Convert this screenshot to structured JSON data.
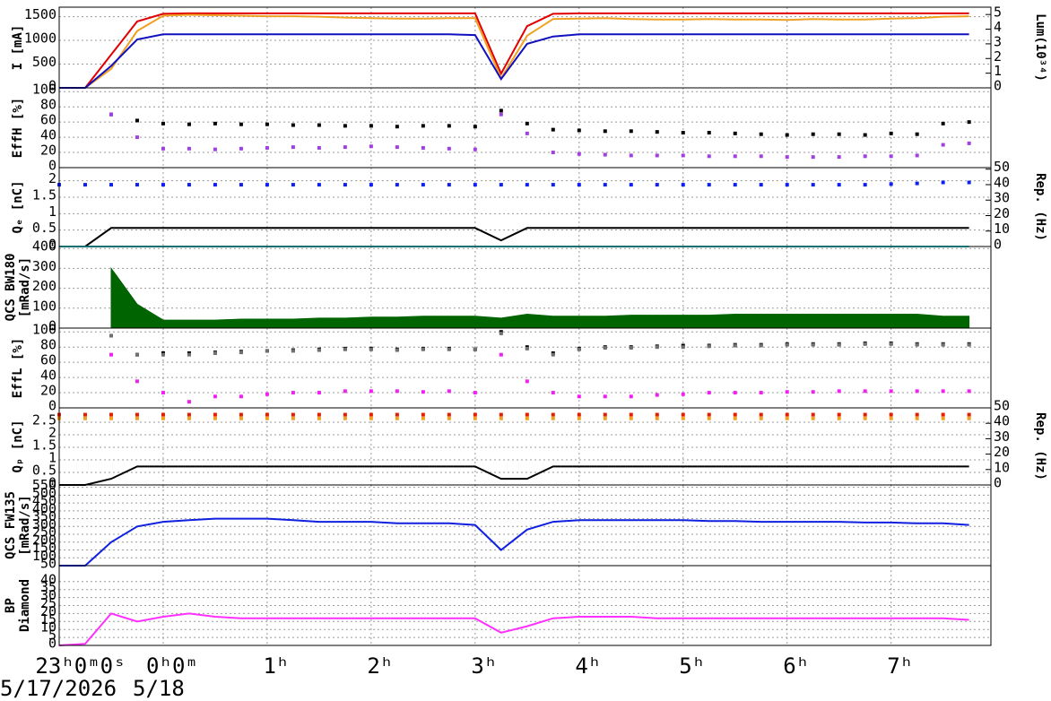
{
  "chart_data": [
    {
      "type": "line",
      "ylabel": "I [mA]",
      "y2label": "Lum(10³⁴)",
      "x": [
        -1,
        -0.75,
        -0.5,
        -0.25,
        0,
        0.25,
        0.5,
        0.75,
        1,
        1.25,
        1.5,
        1.75,
        2,
        2.25,
        2.5,
        2.75,
        3,
        3.25,
        3.5,
        3.75,
        4,
        4.25,
        4.5,
        4.75,
        5,
        5.25,
        5.5,
        5.75,
        6,
        6.25,
        6.5,
        6.75,
        7,
        7.25,
        7.5,
        7.75
      ],
      "xlim": [
        -1,
        7.96
      ],
      "ylim": [
        0,
        1700
      ],
      "yticks": [
        0,
        500,
        1000,
        1500
      ],
      "y2lim": [
        0,
        5.5
      ],
      "y2ticks": [
        0,
        1,
        2,
        3,
        4,
        5
      ],
      "series": [
        {
          "color": "#e00000",
          "values": [
            0,
            0,
            700,
            1400,
            1560,
            1570,
            1570,
            1570,
            1570,
            1570,
            1570,
            1570,
            1570,
            1570,
            1570,
            1570,
            1570,
            300,
            1300,
            1560,
            1570,
            1570,
            1570,
            1570,
            1570,
            1570,
            1570,
            1570,
            1570,
            1570,
            1570,
            1570,
            1570,
            1570,
            1570,
            1570
          ]
        },
        {
          "color": "#f0a020",
          "values": [
            0,
            0,
            400,
            1200,
            1520,
            1540,
            1530,
            1520,
            1510,
            1510,
            1500,
            1480,
            1470,
            1460,
            1460,
            1470,
            1470,
            200,
            1100,
            1450,
            1460,
            1470,
            1450,
            1440,
            1440,
            1450,
            1440,
            1440,
            1430,
            1450,
            1440,
            1440,
            1460,
            1470,
            1500,
            1510
          ]
        },
        {
          "color": "#1010c0",
          "axis": "y2",
          "values": [
            0,
            0,
            1.5,
            3.3,
            3.65,
            3.65,
            3.65,
            3.65,
            3.65,
            3.65,
            3.65,
            3.65,
            3.65,
            3.65,
            3.65,
            3.65,
            3.6,
            0.6,
            3,
            3.5,
            3.65,
            3.65,
            3.65,
            3.65,
            3.65,
            3.65,
            3.65,
            3.65,
            3.65,
            3.65,
            3.65,
            3.65,
            3.65,
            3.65,
            3.65,
            3.65
          ]
        }
      ]
    },
    {
      "type": "scatter",
      "ylabel": "EffH [%]",
      "x": [
        -1,
        -0.75,
        -0.5,
        -0.25,
        0,
        0.25,
        0.5,
        0.75,
        1,
        1.25,
        1.5,
        1.75,
        2,
        2.25,
        2.5,
        2.75,
        3,
        3.25,
        3.5,
        3.75,
        4,
        4.25,
        4.5,
        4.75,
        5,
        5.25,
        5.5,
        5.75,
        6,
        6.25,
        6.5,
        6.75,
        7,
        7.25,
        7.5,
        7.75
      ],
      "xlim": [
        -1,
        7.96
      ],
      "ylim": [
        0,
        105
      ],
      "yticks": [
        0,
        20,
        40,
        60,
        80,
        100
      ],
      "series": [
        {
          "color": "#000000",
          "values": [
            null,
            null,
            70,
            62,
            58,
            57,
            58,
            57,
            57,
            56,
            56,
            55,
            55,
            54,
            55,
            55,
            54,
            75,
            58,
            50,
            49,
            48,
            48,
            47,
            46,
            46,
            45,
            44,
            43,
            44,
            44,
            43,
            45,
            44,
            58,
            60
          ]
        },
        {
          "color": "#a040e0",
          "values": [
            null,
            null,
            70,
            40,
            25,
            25,
            24,
            25,
            26,
            27,
            26,
            27,
            28,
            27,
            26,
            25,
            24,
            70,
            45,
            20,
            18,
            17,
            16,
            16,
            16,
            15,
            15,
            15,
            14,
            14,
            14,
            15,
            15,
            16,
            30,
            32
          ]
        }
      ]
    },
    {
      "type": "scatter",
      "ylabel": "Qₑ [nC]",
      "y2label": "Rep. (Hz)",
      "x": [
        -1,
        -0.75,
        -0.5,
        -0.25,
        0,
        0.25,
        0.5,
        0.75,
        1,
        1.25,
        1.5,
        1.75,
        2,
        2.25,
        2.5,
        2.75,
        3,
        3.25,
        3.5,
        3.75,
        4,
        4.25,
        4.5,
        4.75,
        5,
        5.25,
        5.5,
        5.75,
        6,
        6.25,
        6.5,
        6.75,
        7,
        7.25,
        7.5,
        7.75
      ],
      "xlim": [
        -1,
        7.96
      ],
      "ylim": [
        0,
        2.4
      ],
      "yticks": [
        0,
        0.5,
        1,
        1.5,
        2
      ],
      "y2lim": [
        0,
        51
      ],
      "y2ticks": [
        0,
        10,
        20,
        30,
        40,
        50
      ],
      "series": [
        {
          "color": "#1020f0",
          "values": [
            1.88,
            1.88,
            1.88,
            1.88,
            1.88,
            1.88,
            1.88,
            1.88,
            1.88,
            1.88,
            1.88,
            1.88,
            1.88,
            1.88,
            1.88,
            1.88,
            1.88,
            1.88,
            1.88,
            1.88,
            1.88,
            1.88,
            1.88,
            1.88,
            1.88,
            1.88,
            1.88,
            1.88,
            1.88,
            1.88,
            1.88,
            1.88,
            1.9,
            1.92,
            1.95,
            1.95
          ]
        },
        {
          "color": "#000000",
          "axis": "y2",
          "type": "line",
          "values": [
            0,
            0,
            12,
            12,
            12,
            12,
            12,
            12,
            12,
            12,
            12,
            12,
            12,
            12,
            12,
            12,
            12,
            4,
            12,
            12,
            12,
            12,
            12,
            12,
            12,
            12,
            12,
            12,
            12,
            12,
            12,
            12,
            12,
            12,
            12,
            12
          ]
        },
        {
          "color": "#20e0e0",
          "type": "line",
          "values": [
            0,
            0,
            0,
            0,
            0,
            0,
            0,
            0,
            0,
            0,
            0,
            0,
            0,
            0,
            0,
            0,
            0,
            0,
            0,
            0,
            0,
            0,
            0,
            0,
            0,
            0,
            0,
            0,
            0,
            0,
            0,
            0,
            0,
            0,
            0,
            0
          ]
        }
      ]
    },
    {
      "type": "area",
      "ylabel": [
        "QCS BW180",
        "[mRad/s]"
      ],
      "x": [
        -1,
        -0.75,
        -0.5,
        -0.25,
        0,
        0.25,
        0.5,
        0.75,
        1,
        1.25,
        1.5,
        1.75,
        2,
        2.25,
        2.5,
        2.75,
        3,
        3.25,
        3.5,
        3.75,
        4,
        4.25,
        4.5,
        4.75,
        5,
        5.25,
        5.5,
        5.75,
        6,
        6.25,
        6.5,
        6.75,
        7,
        7.25,
        7.5,
        7.75
      ],
      "xlim": [
        -1,
        7.96
      ],
      "ylim": [
        0,
        410
      ],
      "yticks": [
        0,
        100,
        200,
        300,
        400
      ],
      "series": [
        {
          "color": "#006400",
          "values": [
            null,
            null,
            300,
            120,
            40,
            40,
            40,
            45,
            45,
            45,
            50,
            50,
            55,
            55,
            60,
            60,
            60,
            50,
            70,
            60,
            60,
            60,
            65,
            65,
            65,
            65,
            70,
            70,
            70,
            70,
            70,
            70,
            70,
            70,
            60,
            60
          ]
        }
      ]
    },
    {
      "type": "scatter",
      "ylabel": "EffL [%]",
      "x": [
        -1,
        -0.75,
        -0.5,
        -0.25,
        0,
        0.25,
        0.5,
        0.75,
        1,
        1.25,
        1.5,
        1.75,
        2,
        2.25,
        2.5,
        2.75,
        3,
        3.25,
        3.5,
        3.75,
        4,
        4.25,
        4.5,
        4.75,
        5,
        5.25,
        5.5,
        5.75,
        6,
        6.25,
        6.5,
        6.75,
        7,
        7.25,
        7.5,
        7.75
      ],
      "xlim": [
        -1,
        7.96
      ],
      "ylim": [
        0,
        105
      ],
      "yticks": [
        0,
        20,
        40,
        60,
        80,
        100
      ],
      "series": [
        {
          "color": "#000000",
          "values": [
            null,
            null,
            95,
            70,
            72,
            72,
            73,
            74,
            75,
            76,
            77,
            78,
            78,
            77,
            78,
            78,
            77,
            100,
            80,
            72,
            78,
            80,
            80,
            81,
            82,
            82,
            83,
            83,
            84,
            84,
            84,
            85,
            85,
            84,
            84,
            84
          ]
        },
        {
          "color": "#707070",
          "values": [
            null,
            null,
            95,
            70,
            70,
            70,
            72,
            73,
            75,
            75,
            76,
            77,
            77,
            76,
            77,
            77,
            77,
            98,
            78,
            70,
            77,
            79,
            79,
            80,
            80,
            81,
            82,
            82,
            83,
            83,
            83,
            84,
            84,
            83,
            83,
            83
          ]
        },
        {
          "color": "#f020f0",
          "values": [
            null,
            null,
            70,
            35,
            20,
            8,
            15,
            15,
            18,
            20,
            20,
            22,
            22,
            22,
            21,
            22,
            20,
            70,
            35,
            20,
            15,
            15,
            15,
            17,
            18,
            20,
            20,
            20,
            21,
            21,
            22,
            22,
            22,
            22,
            22,
            22
          ]
        }
      ]
    },
    {
      "type": "scatter",
      "ylabel": "Qₚ [nC]",
      "y2label": "Rep. (Hz)",
      "x": [
        -1,
        -0.75,
        -0.5,
        -0.25,
        0,
        0.25,
        0.5,
        0.75,
        1,
        1.25,
        1.5,
        1.75,
        2,
        2.25,
        2.5,
        2.75,
        3,
        3.25,
        3.5,
        3.75,
        4,
        4.25,
        4.5,
        4.75,
        5,
        5.25,
        5.5,
        5.75,
        6,
        6.25,
        6.5,
        6.75,
        7,
        7.25,
        7.5,
        7.75
      ],
      "xlim": [
        -1,
        7.96
      ],
      "ylim": [
        0,
        3.07
      ],
      "yticks": [
        0,
        0.5,
        1,
        1.5,
        2,
        2.5
      ],
      "y2lim": [
        0,
        50
      ],
      "y2ticks": [
        0,
        10,
        20,
        30,
        40,
        50
      ],
      "series": [
        {
          "color": "#f0a020",
          "values": [
            2.65,
            2.65,
            2.65,
            2.65,
            2.65,
            2.65,
            2.65,
            2.65,
            2.65,
            2.65,
            2.65,
            2.65,
            2.65,
            2.65,
            2.65,
            2.65,
            2.65,
            2.65,
            2.65,
            2.65,
            2.65,
            2.65,
            2.65,
            2.65,
            2.65,
            2.65,
            2.65,
            2.65,
            2.65,
            2.65,
            2.65,
            2.65,
            2.65,
            2.65,
            2.65,
            2.65
          ]
        },
        {
          "color": "#e02000",
          "values": [
            2.8,
            2.8,
            2.8,
            2.8,
            2.8,
            2.8,
            2.8,
            2.8,
            2.8,
            2.8,
            2.8,
            2.8,
            2.8,
            2.8,
            2.8,
            2.8,
            2.8,
            2.8,
            2.8,
            2.8,
            2.8,
            2.8,
            2.8,
            2.8,
            2.8,
            2.8,
            2.8,
            2.8,
            2.8,
            2.8,
            2.8,
            2.8,
            2.8,
            2.8,
            2.8,
            2.8
          ]
        },
        {
          "color": "#000000",
          "axis": "y2",
          "type": "line",
          "values": [
            0,
            0,
            4,
            12,
            12,
            12,
            12,
            12,
            12,
            12,
            12,
            12,
            12,
            12,
            12,
            12,
            12,
            4,
            4,
            12,
            12,
            12,
            12,
            12,
            12,
            12,
            12,
            12,
            12,
            12,
            12,
            12,
            12,
            12,
            12,
            12
          ]
        }
      ]
    },
    {
      "type": "line",
      "ylabel": [
        "QCS FW135",
        "[mRad/s]"
      ],
      "x": [
        -1,
        -0.75,
        -0.5,
        -0.25,
        0,
        0.25,
        0.5,
        0.75,
        1,
        1.25,
        1.5,
        1.75,
        2,
        2.25,
        2.5,
        2.75,
        3,
        3.25,
        3.5,
        3.75,
        4,
        4.25,
        4.5,
        4.75,
        5,
        5.25,
        5.5,
        5.75,
        6,
        6.25,
        6.5,
        6.75,
        7,
        7.25,
        7.5,
        7.75
      ],
      "xlim": [
        -1,
        7.96
      ],
      "ylim": [
        50,
        565
      ],
      "yticks": [
        50,
        100,
        150,
        200,
        250,
        300,
        350,
        400,
        450,
        500,
        550
      ],
      "series": [
        {
          "color": "#1020e0",
          "values": [
            50,
            50,
            200,
            300,
            330,
            340,
            350,
            350,
            350,
            340,
            330,
            330,
            330,
            320,
            320,
            320,
            310,
            150,
            280,
            330,
            340,
            340,
            340,
            340,
            340,
            335,
            335,
            330,
            330,
            330,
            330,
            325,
            325,
            320,
            320,
            310
          ]
        }
      ]
    },
    {
      "type": "line",
      "ylabel": [
        "BP",
        "Diamond"
      ],
      "x": [
        -1,
        -0.75,
        -0.5,
        -0.25,
        0,
        0.25,
        0.5,
        0.75,
        1,
        1.25,
        1.5,
        1.75,
        2,
        2.25,
        2.5,
        2.75,
        3,
        3.25,
        3.5,
        3.75,
        4,
        4.25,
        4.5,
        4.75,
        5,
        5.25,
        5.5,
        5.75,
        6,
        6.25,
        6.5,
        6.75,
        7,
        7.25,
        7.5,
        7.75
      ],
      "xlim": [
        -1,
        7.96
      ],
      "ylim": [
        0,
        50
      ],
      "yticks": [
        0,
        5,
        10,
        15,
        20,
        25,
        30,
        35,
        40
      ],
      "xticks": [
        {
          "value": -1,
          "label": "23ʰ0ᵐ0ˢ"
        },
        {
          "value": 0,
          "label": "0ʰ0ᵐ"
        },
        {
          "value": 1,
          "label": "1ʰ"
        },
        {
          "value": 2,
          "label": "2ʰ"
        },
        {
          "value": 3,
          "label": "3ʰ"
        },
        {
          "value": 4,
          "label": "4ʰ"
        },
        {
          "value": 5,
          "label": "5ʰ"
        },
        {
          "value": 6,
          "label": "6ʰ"
        },
        {
          "value": 7,
          "label": "7ʰ"
        }
      ],
      "series": [
        {
          "color": "#ff30ff",
          "values": [
            0,
            1,
            20,
            15,
            18,
            20,
            18,
            17,
            17,
            17,
            17,
            17,
            17,
            17,
            17,
            17,
            17,
            8,
            12,
            17,
            18,
            18,
            18,
            17,
            17,
            17,
            17,
            17,
            17,
            17,
            17,
            17,
            17,
            17,
            17,
            16
          ]
        }
      ]
    }
  ],
  "date_labels": [
    "5/17/2026",
    "5/18"
  ]
}
